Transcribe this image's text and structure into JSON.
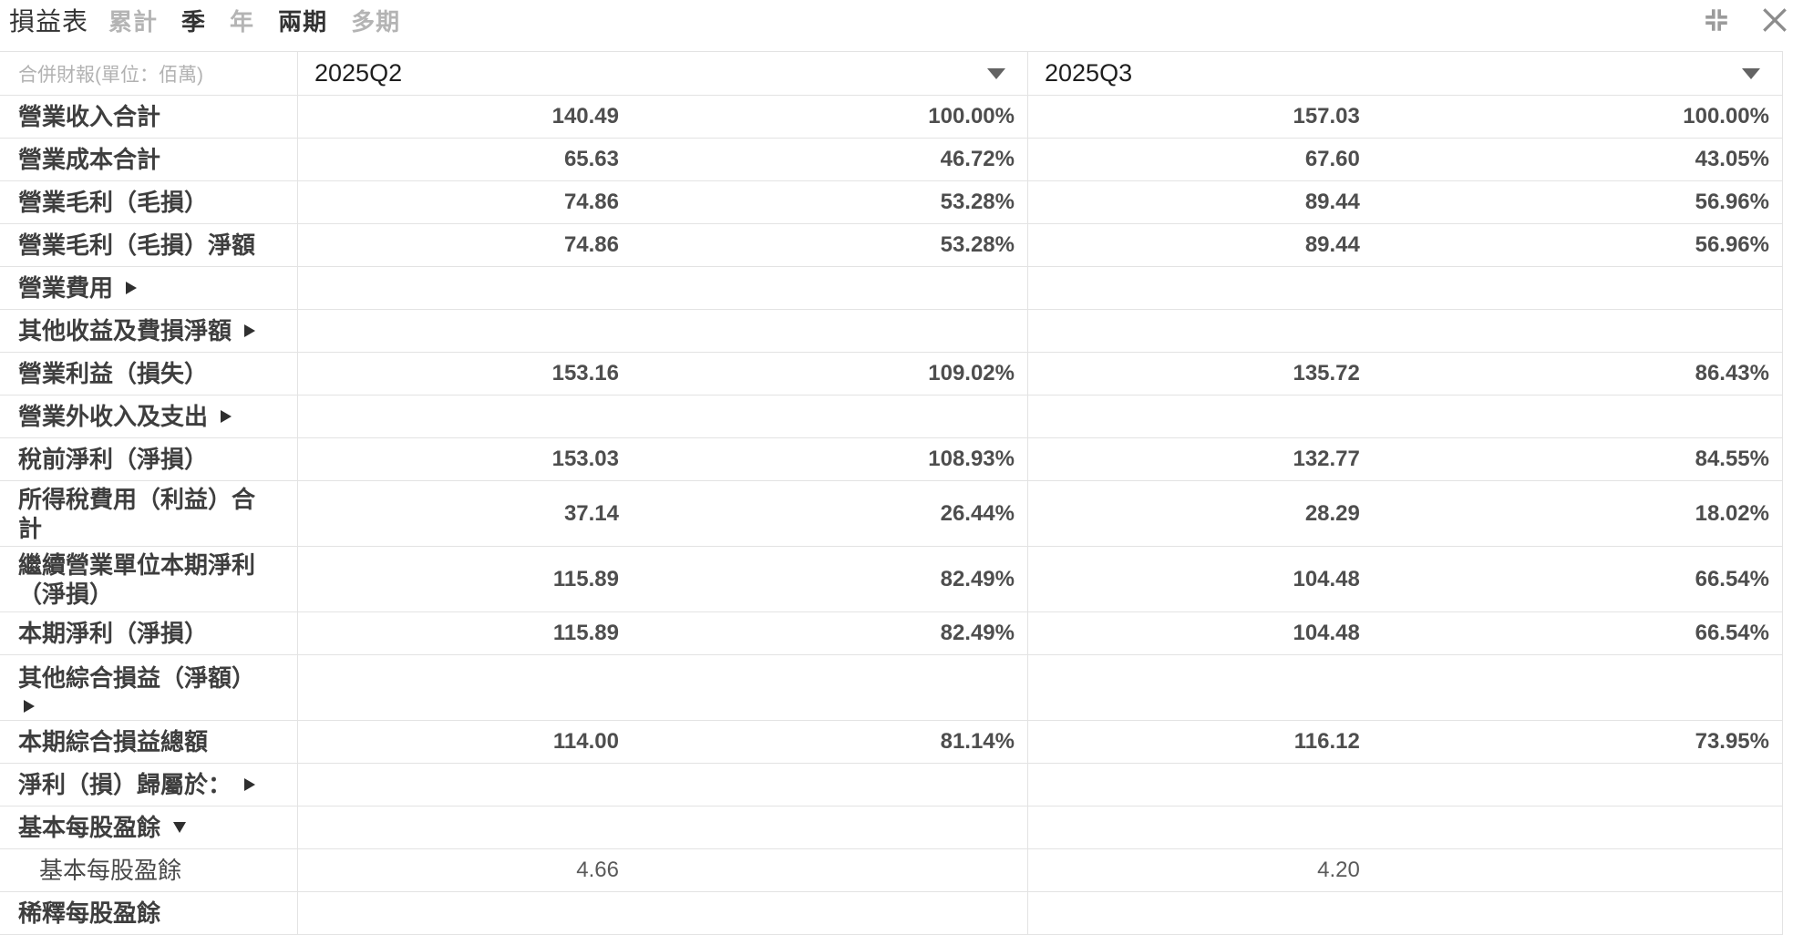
{
  "header": {
    "title": "損益表",
    "tabs": [
      {
        "id": "cumulative",
        "label": "累計",
        "selected": false
      },
      {
        "id": "quarter",
        "label": "季",
        "selected": true
      },
      {
        "id": "year",
        "label": "年",
        "selected": false
      },
      {
        "id": "two-period",
        "label": "兩期",
        "selected": true
      },
      {
        "id": "multi-period",
        "label": "多期",
        "selected": false
      }
    ],
    "icons": {
      "collapse": "compress-icon",
      "close": "close-icon",
      "icon_color": "#9b9b9b"
    }
  },
  "table": {
    "unit_label": "合併財報(單位：佰萬)",
    "columns": [
      "2025Q2",
      "2025Q3"
    ],
    "rows": [
      {
        "id": "total-operating-revenue",
        "label": "營業收入合計",
        "arrow": null,
        "tall": false,
        "indent": false,
        "light": false,
        "cells": [
          {
            "amount": "140.49",
            "percent": "100.00%"
          },
          {
            "amount": "157.03",
            "percent": "100.00%"
          }
        ]
      },
      {
        "id": "total-operating-costs",
        "label": "營業成本合計",
        "arrow": null,
        "tall": false,
        "indent": false,
        "light": false,
        "cells": [
          {
            "amount": "65.63",
            "percent": "46.72%"
          },
          {
            "amount": "67.60",
            "percent": "43.05%"
          }
        ]
      },
      {
        "id": "gross-profit",
        "label": "營業毛利（毛損）",
        "arrow": null,
        "tall": false,
        "indent": false,
        "light": false,
        "cells": [
          {
            "amount": "74.86",
            "percent": "53.28%"
          },
          {
            "amount": "89.44",
            "percent": "56.96%"
          }
        ]
      },
      {
        "id": "gross-profit-net",
        "label": "營業毛利（毛損）淨額",
        "arrow": null,
        "tall": false,
        "indent": false,
        "light": false,
        "cells": [
          {
            "amount": "74.86",
            "percent": "53.28%"
          },
          {
            "amount": "89.44",
            "percent": "56.96%"
          }
        ]
      },
      {
        "id": "operating-expenses",
        "label": "營業費用",
        "arrow": "right",
        "arrow_block": false,
        "tall": false,
        "indent": false,
        "light": false,
        "cells": [
          null,
          null
        ]
      },
      {
        "id": "other-income-expenses-net",
        "label": "其他收益及費損淨額",
        "arrow": "right",
        "arrow_block": false,
        "tall": false,
        "indent": false,
        "light": false,
        "cells": [
          null,
          null
        ]
      },
      {
        "id": "operating-income",
        "label": "營業利益（損失）",
        "arrow": null,
        "tall": false,
        "indent": false,
        "light": false,
        "cells": [
          {
            "amount": "153.16",
            "percent": "109.02%"
          },
          {
            "amount": "135.72",
            "percent": "86.43%"
          }
        ]
      },
      {
        "id": "non-operating-income-expenses",
        "label": "營業外收入及支出",
        "arrow": "right",
        "arrow_block": false,
        "tall": false,
        "indent": false,
        "light": false,
        "cells": [
          null,
          null
        ]
      },
      {
        "id": "pretax-income",
        "label": "稅前淨利（淨損）",
        "arrow": null,
        "tall": false,
        "indent": false,
        "light": false,
        "cells": [
          {
            "amount": "153.03",
            "percent": "108.93%"
          },
          {
            "amount": "132.77",
            "percent": "84.55%"
          }
        ]
      },
      {
        "id": "income-tax-expense-total",
        "label": "所得稅費用（利益）合計",
        "arrow": null,
        "tall": true,
        "indent": false,
        "light": false,
        "cells": [
          {
            "amount": "37.14",
            "percent": "26.44%"
          },
          {
            "amount": "28.29",
            "percent": "18.02%"
          }
        ]
      },
      {
        "id": "net-income-continuing-operations",
        "label": "繼續營業單位本期淨利（淨損）",
        "arrow": null,
        "tall": true,
        "indent": false,
        "light": false,
        "cells": [
          {
            "amount": "115.89",
            "percent": "82.49%"
          },
          {
            "amount": "104.48",
            "percent": "66.54%"
          }
        ]
      },
      {
        "id": "net-income",
        "label": "本期淨利（淨損）",
        "arrow": null,
        "tall": false,
        "indent": false,
        "light": false,
        "cells": [
          {
            "amount": "115.89",
            "percent": "82.49%"
          },
          {
            "amount": "104.48",
            "percent": "66.54%"
          }
        ]
      },
      {
        "id": "other-comprehensive-income-net",
        "label": "其他綜合損益（淨額）",
        "arrow": "right",
        "arrow_block": true,
        "tall": true,
        "indent": false,
        "light": false,
        "cells": [
          null,
          null
        ]
      },
      {
        "id": "total-comprehensive-income",
        "label": "本期綜合損益總額",
        "arrow": null,
        "tall": false,
        "indent": false,
        "light": false,
        "cells": [
          {
            "amount": "114.00",
            "percent": "81.14%"
          },
          {
            "amount": "116.12",
            "percent": "73.95%"
          }
        ]
      },
      {
        "id": "net-income-attributable-to",
        "label": "淨利（損）歸屬於：",
        "arrow": "right",
        "arrow_block": false,
        "tall": false,
        "indent": false,
        "light": false,
        "cells": [
          null,
          null
        ]
      },
      {
        "id": "basic-eps-section",
        "label": "基本每股盈餘",
        "arrow": "down",
        "arrow_block": false,
        "tall": false,
        "indent": false,
        "light": false,
        "cells": [
          null,
          null
        ]
      },
      {
        "id": "basic-eps",
        "label": "基本每股盈餘",
        "arrow": null,
        "tall": false,
        "indent": true,
        "light": true,
        "cells": [
          {
            "amount": "4.66",
            "percent": ""
          },
          {
            "amount": "4.20",
            "percent": ""
          }
        ]
      },
      {
        "id": "diluted-eps",
        "label": "稀釋每股盈餘",
        "arrow": null,
        "tall": false,
        "indent": false,
        "light": false,
        "cells": [
          null,
          null
        ]
      }
    ]
  }
}
